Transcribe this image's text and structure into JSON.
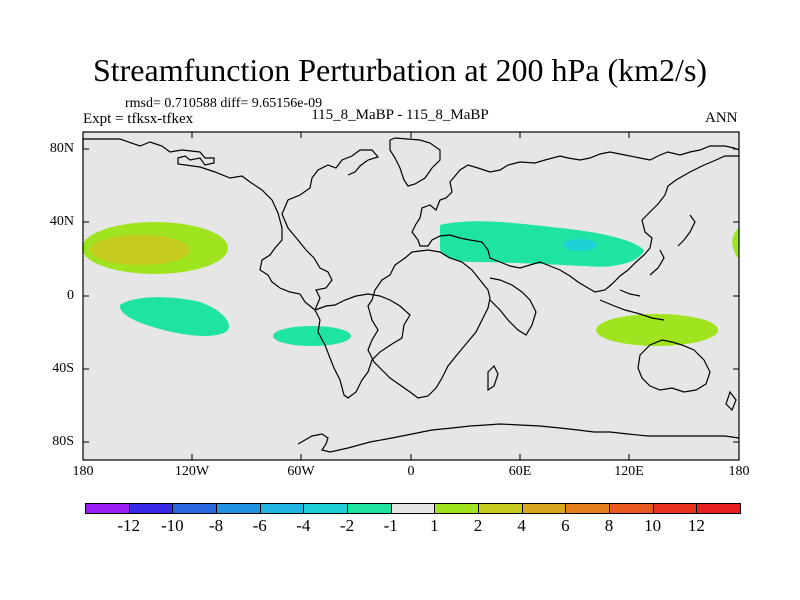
{
  "title": "Streamfunction Perturbation at 200 hPa (km2/s)",
  "stats_text": "rmsd= 0.710588 diff= 9.65156e-09",
  "expt_text": "Expt = tfksx-tfkex",
  "cases_text": "115_8_MaBP - 115_8_MaBP",
  "season_text": "ANN",
  "lat_labels": [
    "80N",
    "40N",
    "0",
    "40S",
    "80S"
  ],
  "lon_labels": [
    "180",
    "120W",
    "60W",
    "0",
    "60E",
    "120E",
    "180"
  ],
  "colorbar": {
    "labels": [
      "-12",
      "-10",
      "-8",
      "-6",
      "-4",
      "-2",
      "-1",
      "1",
      "2",
      "4",
      "6",
      "8",
      "10",
      "12"
    ],
    "colors": [
      "#9b1ff2",
      "#3a29e6",
      "#2a66e0",
      "#1f92e0",
      "#20b4e0",
      "#1fd0d8",
      "#1fe3a2",
      "#e6e6e6",
      "#a0e31f",
      "#c6cc1f",
      "#d9a81f",
      "#e6801f",
      "#e85a1f",
      "#e8341f",
      "#e81f1f"
    ]
  },
  "colors": {
    "background": "#e6e6e6",
    "land_outline": "#000000",
    "negative_light": "#1fe3a2",
    "negative_medium": "#1fd0d8",
    "positive_light": "#a0e31f",
    "positive_medium": "#c6cc1f"
  }
}
